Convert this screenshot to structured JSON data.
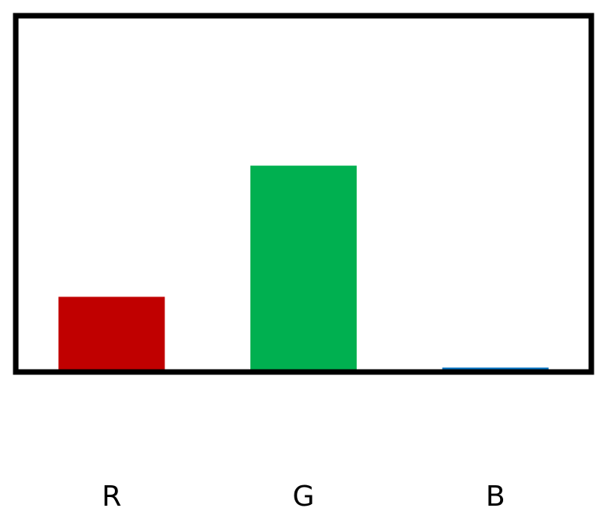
{
  "chart_data": {
    "type": "bar",
    "categories": [
      "R",
      "G",
      "B"
    ],
    "values": [
      0.35,
      0.98,
      0.01
    ],
    "colors": [
      "#c00000",
      "#00b050",
      "#0070c0"
    ],
    "title": "",
    "xlabel": "",
    "ylabel": "",
    "ylim": [
      0,
      1.7
    ],
    "grid": false,
    "legend": "none",
    "frame": true
  }
}
